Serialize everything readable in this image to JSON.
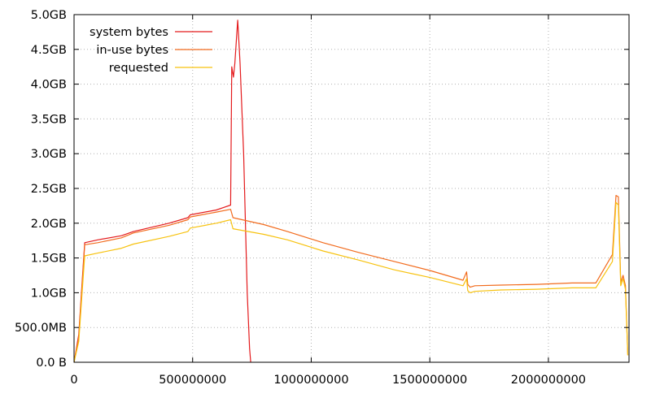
{
  "chart_data": {
    "type": "line",
    "title": "",
    "xlabel": "",
    "ylabel": "",
    "xlim": [
      0,
      2340000000
    ],
    "ylim": [
      0,
      5.0
    ],
    "grid": true,
    "legend_position": "top-left",
    "x_ticks": [
      {
        "value": 0,
        "label": "0"
      },
      {
        "value": 500000000,
        "label": "500000000"
      },
      {
        "value": 1000000000,
        "label": "1000000000"
      },
      {
        "value": 1500000000,
        "label": "1500000000"
      },
      {
        "value": 2000000000,
        "label": "2000000000"
      }
    ],
    "y_ticks": [
      {
        "value": 0.0,
        "label": "0.0 B"
      },
      {
        "value": 0.5,
        "label": "500.0MB"
      },
      {
        "value": 1.0,
        "label": "1.0GB"
      },
      {
        "value": 1.5,
        "label": "1.5GB"
      },
      {
        "value": 2.0,
        "label": "2.0GB"
      },
      {
        "value": 2.5,
        "label": "2.5GB"
      },
      {
        "value": 3.0,
        "label": "3.0GB"
      },
      {
        "value": 3.5,
        "label": "3.5GB"
      },
      {
        "value": 4.0,
        "label": "4.0GB"
      },
      {
        "value": 4.5,
        "label": "4.5GB"
      },
      {
        "value": 5.0,
        "label": "5.0GB"
      }
    ],
    "series": [
      {
        "name": "system bytes",
        "color": "#e41a1c",
        "x": [
          0,
          20000000,
          35000000,
          45000000,
          100000000,
          200000000,
          250000000,
          400000000,
          480000000,
          490000000,
          600000000,
          660000000,
          665000000,
          672000000,
          678000000,
          690000000,
          692000000,
          700000000,
          715000000,
          730000000,
          740000000,
          745000000
        ],
        "y": [
          0.0,
          0.4,
          1.2,
          1.72,
          1.76,
          1.82,
          1.88,
          2.0,
          2.08,
          2.12,
          2.19,
          2.26,
          4.25,
          4.1,
          4.3,
          4.92,
          4.8,
          4.3,
          3.0,
          1.0,
          0.2,
          0.0
        ]
      },
      {
        "name": "in-use bytes",
        "color": "#f26b1d",
        "x": [
          0,
          20000000,
          35000000,
          45000000,
          100000000,
          200000000,
          250000000,
          400000000,
          480000000,
          490000000,
          600000000,
          660000000,
          670000000,
          800000000,
          900000000,
          1050000000,
          1200000000,
          1350000000,
          1500000000,
          1640000000,
          1655000000,
          1660000000,
          1670000000,
          1690000000,
          1800000000,
          1950000000,
          2100000000,
          2200000000,
          2270000000,
          2285000000,
          2295000000,
          2305000000,
          2315000000,
          2325000000,
          2335000000
        ],
        "y": [
          0.0,
          0.35,
          1.15,
          1.69,
          1.72,
          1.79,
          1.86,
          1.97,
          2.05,
          2.09,
          2.16,
          2.2,
          2.08,
          1.98,
          1.88,
          1.72,
          1.58,
          1.45,
          1.32,
          1.18,
          1.3,
          1.12,
          1.08,
          1.1,
          1.11,
          1.12,
          1.14,
          1.14,
          1.55,
          2.4,
          2.38,
          1.15,
          1.25,
          1.1,
          0.1
        ]
      },
      {
        "name": "requested",
        "color": "#f7c20f",
        "x": [
          0,
          20000000,
          35000000,
          45000000,
          100000000,
          200000000,
          250000000,
          400000000,
          480000000,
          490000000,
          600000000,
          660000000,
          670000000,
          800000000,
          900000000,
          1050000000,
          1200000000,
          1350000000,
          1500000000,
          1640000000,
          1655000000,
          1660000000,
          1670000000,
          1690000000,
          1800000000,
          1950000000,
          2100000000,
          2200000000,
          2270000000,
          2285000000,
          2295000000,
          2305000000,
          2315000000,
          2325000000,
          2335000000
        ],
        "y": [
          0.0,
          0.3,
          1.05,
          1.53,
          1.57,
          1.64,
          1.7,
          1.81,
          1.88,
          1.93,
          2.0,
          2.05,
          1.92,
          1.84,
          1.76,
          1.6,
          1.47,
          1.33,
          1.22,
          1.1,
          1.2,
          1.03,
          1.0,
          1.02,
          1.04,
          1.05,
          1.07,
          1.07,
          1.45,
          2.3,
          2.26,
          1.1,
          1.2,
          1.05,
          0.1
        ]
      }
    ]
  }
}
